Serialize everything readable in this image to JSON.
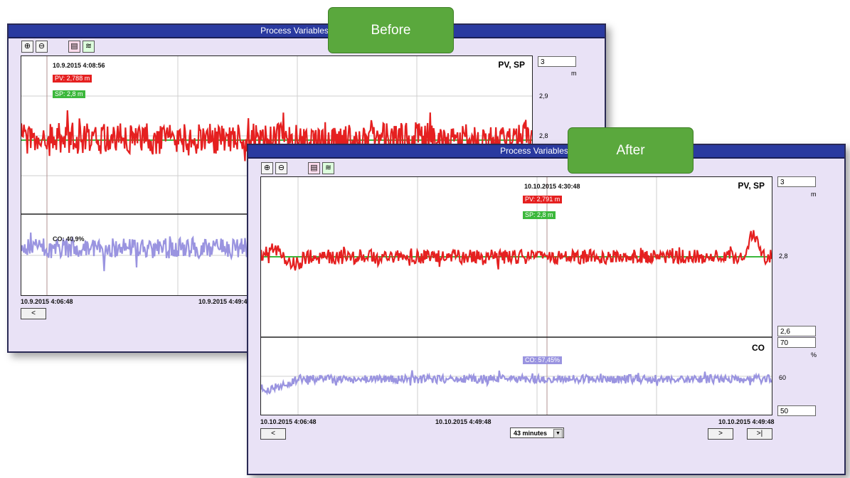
{
  "colors": {
    "pv": "#e52020",
    "sp": "#3cb83c",
    "co": "#9a94e0",
    "titlebar": "#2a3aa0",
    "banner": "#5aa83d"
  },
  "before": {
    "banner": "Before",
    "title": "Process Variables Trend",
    "timestamp": "10.9.2015 4:08:56",
    "pv_tag": "PV:  2,788 m",
    "sp_tag": "SP:  2,8 m",
    "co_tag": "CO:  40,9%",
    "top_label": "PV, SP",
    "scale_max": "3",
    "unit": "m",
    "ticks": [
      "2,9",
      "2,8"
    ],
    "time_start": "10.9.2015 4:06:48",
    "time_mid": "10.9.2015 4:49:4",
    "prev_button": "<"
  },
  "after": {
    "banner": "After",
    "title": "Process Variables Trend",
    "timestamp": "10.10.2015 4:30:48",
    "pv_tag": "PV:  2,791 m",
    "sp_tag": "SP:  2,8 m",
    "co_tag": "CO:  57,45%",
    "top_label": "PV, SP",
    "bottom_label": "CO",
    "scale_max": "3",
    "unit": "m",
    "tick_mid": "2,8",
    "scale_min": "2,6",
    "co_max": "70",
    "co_unit": "%",
    "co_tick": "60",
    "co_min": "50",
    "time_start": "10.10.2015 4:06:48",
    "time_mid": "10.10.2015 4:49:48",
    "time_end": "10.10.2015 4:49:48",
    "span_select": "43 minutes",
    "prev_button": "<",
    "next_button": ">",
    "end_button": ">|"
  },
  "icons": [
    "zoom-in-icon",
    "zoom-out-icon",
    "table-view-icon",
    "trend-view-icon"
  ]
}
